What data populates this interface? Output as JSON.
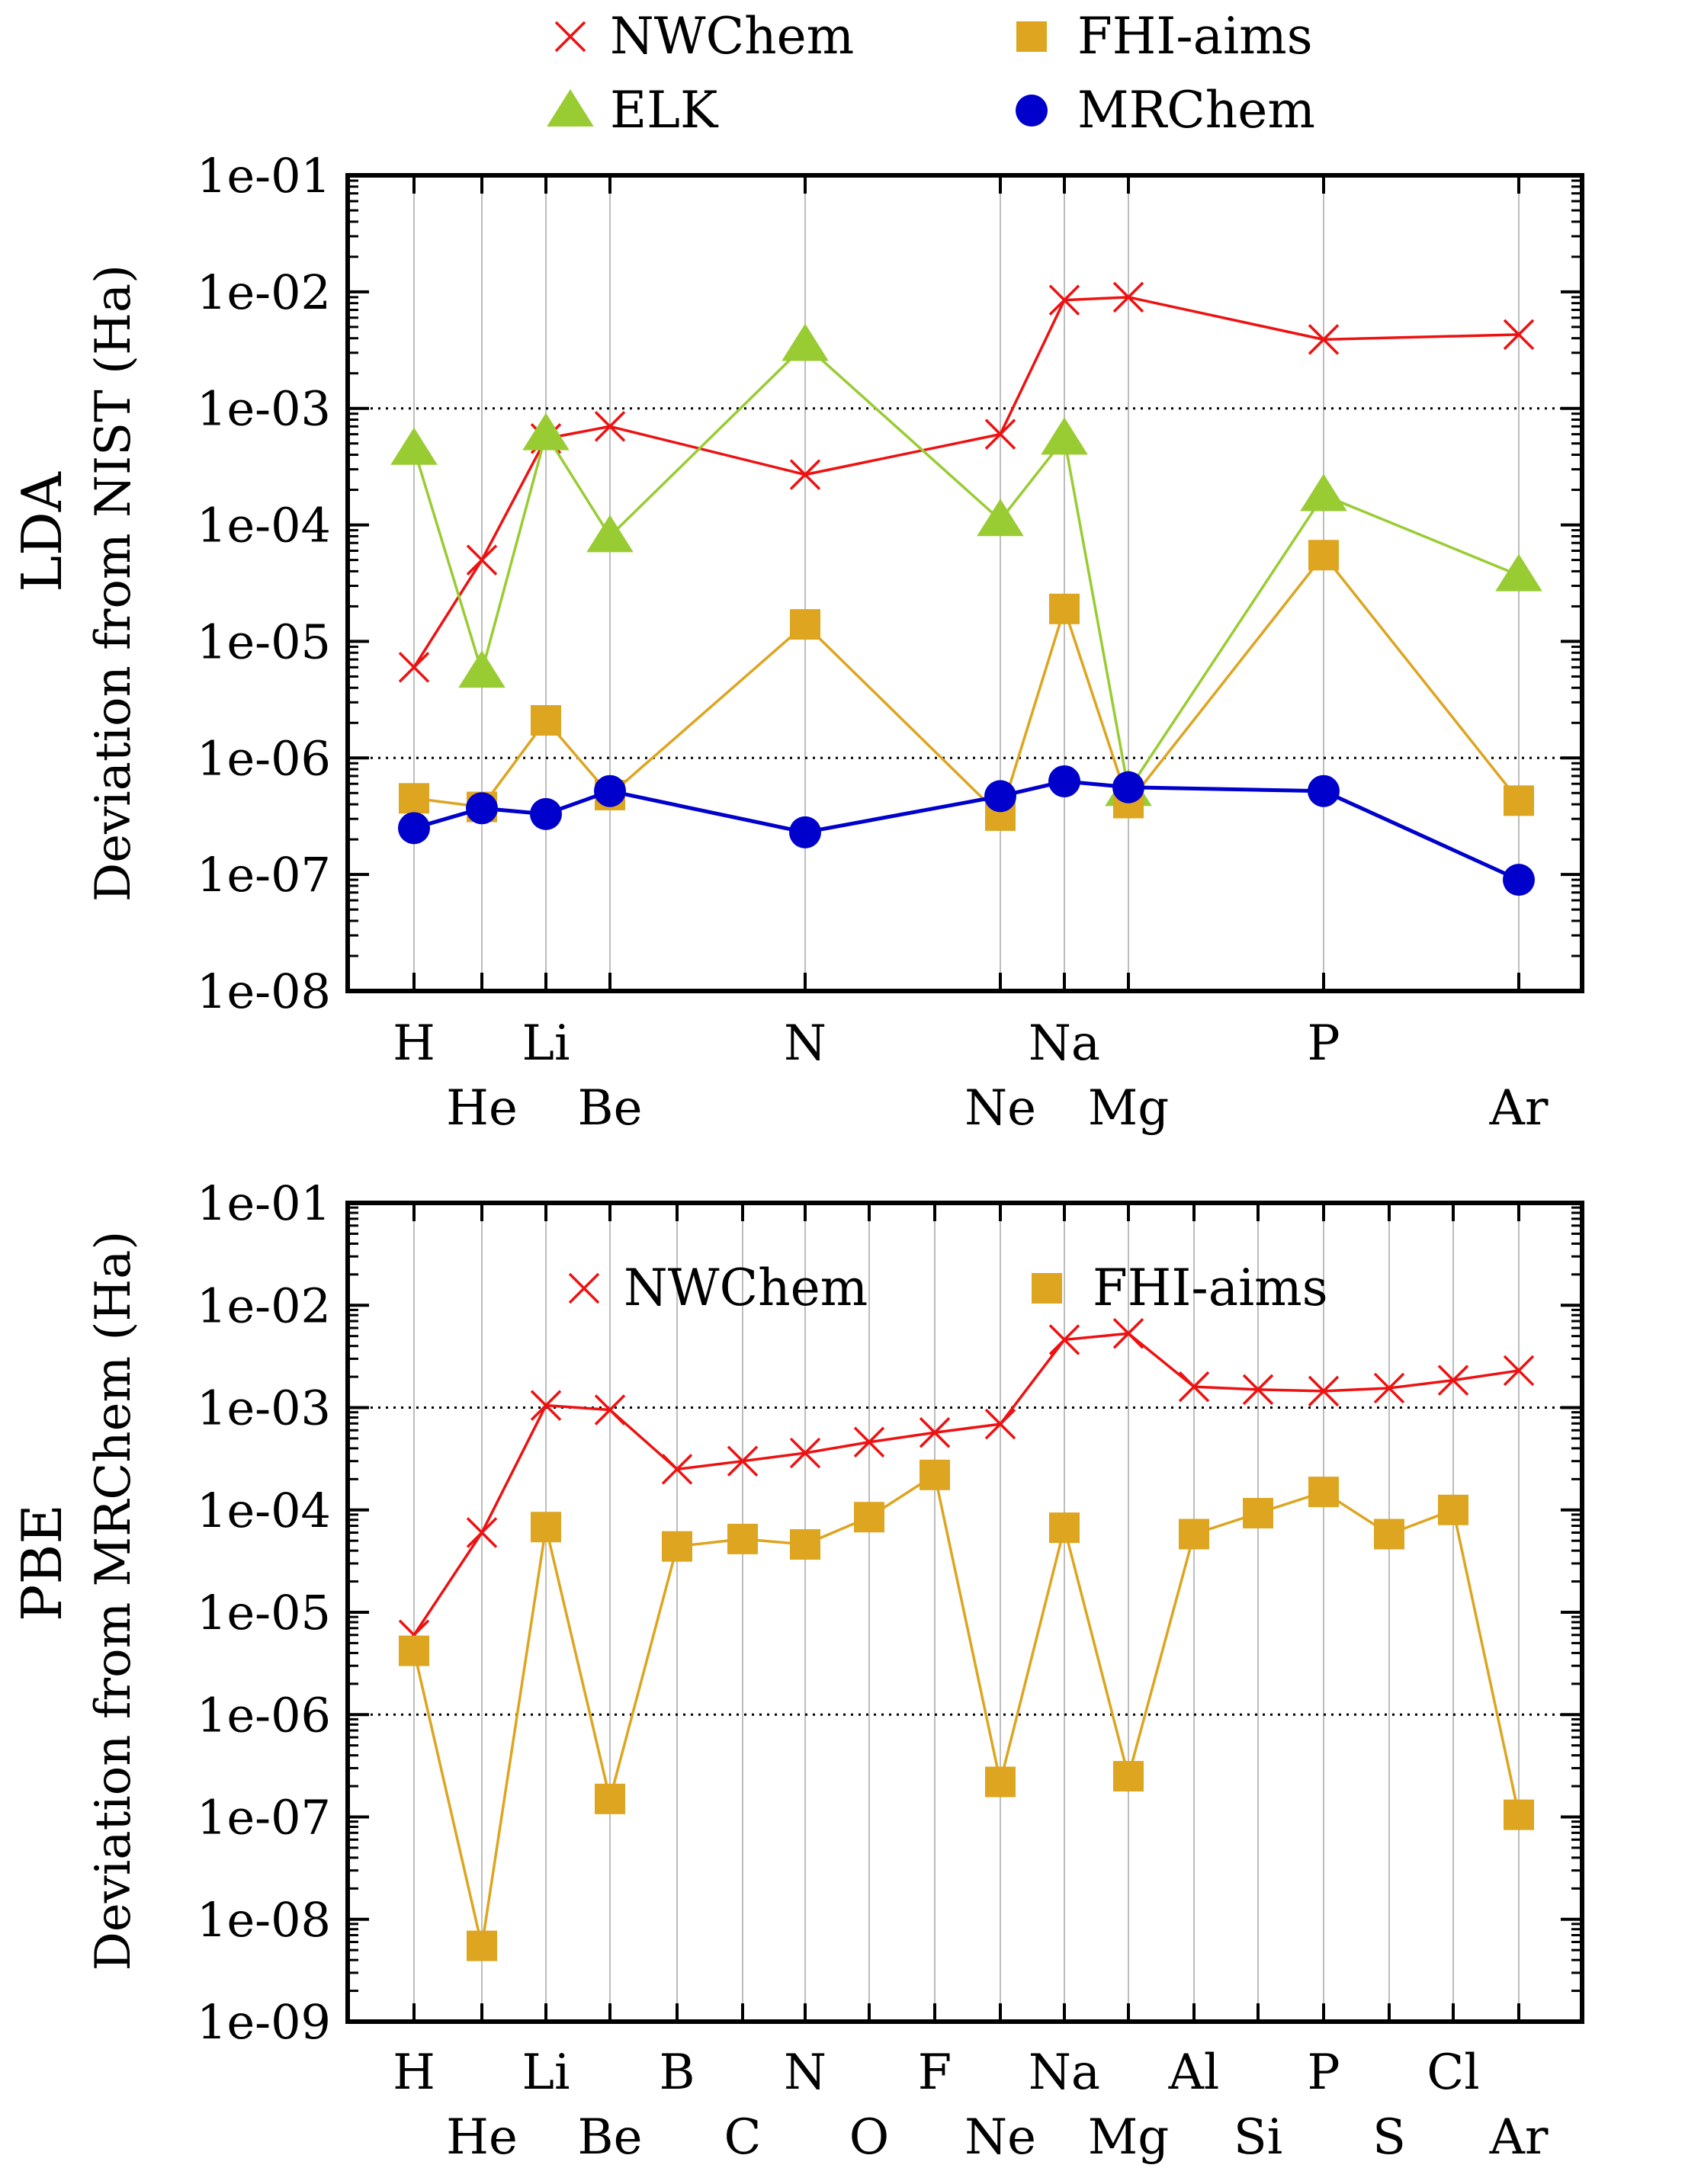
{
  "chart_data": [
    {
      "type": "line",
      "panel_label": "LDA",
      "ylabel": "Deviation from NIST (Ha)",
      "xlabel": "",
      "yscale": "log",
      "ylim": [
        1e-08,
        0.1
      ],
      "yticks": [
        "1e-08",
        "1e-07",
        "1e-06",
        "1e-05",
        "1e-04",
        "1e-03",
        "1e-02",
        "1e-01"
      ],
      "dotted_reference_lines": [
        0.001,
        1e-06
      ],
      "grid": "vertical lines at each element",
      "legend_position": "above the panel",
      "legend": [
        "NWChem",
        "FHI-aims",
        "ELK",
        "MRChem"
      ],
      "categories": [
        "H",
        "He",
        "Li",
        "Be",
        "N",
        "Ne",
        "Na",
        "Mg",
        "P",
        "Ar"
      ],
      "series": [
        {
          "name": "NWChem",
          "marker": "cross",
          "color": "#ee1111",
          "values": [
            6e-06,
            5e-05,
            0.00055,
            0.0007,
            0.00027,
            0.0006,
            0.0085,
            0.009,
            0.0039,
            0.0043
          ]
        },
        {
          "name": "ELK",
          "marker": "triangle",
          "color": "#99cc33",
          "values": [
            0.00045,
            5.5e-06,
            0.0006,
            8e-05,
            0.0035,
            0.00011,
            0.00055,
            5.3e-07,
            0.00018,
            3.7e-05
          ]
        },
        {
          "name": "FHI-aims",
          "marker": "square",
          "color": "#dda520",
          "values": [
            4.5e-07,
            3.8e-07,
            2.1e-06,
            4.8e-07,
            1.4e-05,
            3.2e-07,
            1.9e-05,
            4.1e-07,
            5.5e-05,
            4.3e-07
          ]
        },
        {
          "name": "MRChem",
          "marker": "circle",
          "color": "#0000cc",
          "values": [
            2.5e-07,
            3.7e-07,
            3.3e-07,
            5.2e-07,
            2.3e-07,
            4.7e-07,
            6.3e-07,
            5.6e-07,
            5.2e-07,
            9e-08
          ]
        }
      ]
    },
    {
      "type": "line",
      "panel_label": "PBE",
      "ylabel": "Deviation from MRChem (Ha)",
      "xlabel": "",
      "yscale": "log",
      "ylim": [
        1e-09,
        0.1
      ],
      "yticks": [
        "1e-09",
        "1e-08",
        "1e-07",
        "1e-06",
        "1e-05",
        "1e-04",
        "1e-03",
        "1e-02",
        "1e-01"
      ],
      "dotted_reference_lines": [
        0.001,
        1e-06
      ],
      "grid": "vertical lines at each element",
      "legend_position": "top inside panel",
      "legend": [
        "NWChem",
        "FHI-aims"
      ],
      "categories": [
        "H",
        "He",
        "Li",
        "Be",
        "B",
        "C",
        "N",
        "O",
        "F",
        "Ne",
        "Na",
        "Mg",
        "Al",
        "Si",
        "P",
        "S",
        "Cl",
        "Ar"
      ],
      "series": [
        {
          "name": "NWChem",
          "marker": "cross",
          "color": "#ee1111",
          "values": [
            6e-06,
            6e-05,
            0.00105,
            0.00095,
            0.00025,
            0.0003,
            0.00036,
            0.00046,
            0.00057,
            0.00069,
            0.0046,
            0.0053,
            0.0016,
            0.0015,
            0.00145,
            0.00155,
            0.00185,
            0.0023
          ]
        },
        {
          "name": "FHI-aims",
          "marker": "square",
          "color": "#dda520",
          "values": [
            4.2e-06,
            5.5e-09,
            6.8e-05,
            1.5e-07,
            4.4e-05,
            5.2e-05,
            4.6e-05,
            8.5e-05,
            0.00022,
            2.2e-07,
            6.7e-05,
            2.5e-07,
            5.8e-05,
            9.3e-05,
            0.00015,
            5.8e-05,
            0.0001,
            1.05e-07
          ]
        }
      ]
    }
  ]
}
